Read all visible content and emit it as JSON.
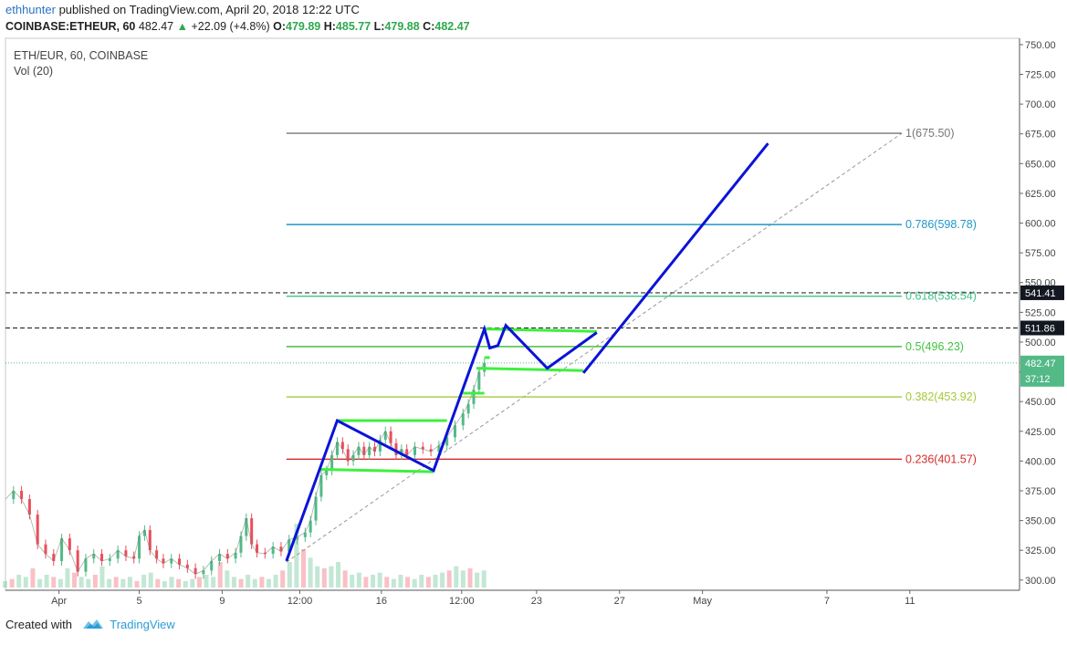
{
  "header": {
    "publisher": "ethhunter",
    "published_text": "published on TradingView.com, April 20, 2018 12:22 UTC",
    "symbol": "COINBASE:ETHEUR, 60",
    "last": "482.47",
    "change": "+22.09 (+4.8%)",
    "o_label": "O:",
    "o": "479.89",
    "h_label": "H:",
    "h": "485.77",
    "l_label": "L:",
    "l": "479.88",
    "c_label": "C:",
    "c": "482.47"
  },
  "legend": {
    "title": "ETH/EUR, 60, COINBASE",
    "indicator": "Vol (20)"
  },
  "footer": {
    "created_with": "Created with",
    "brand": "TradingView"
  },
  "colors": {
    "bull": "#53b987",
    "bear": "#eb4d5c",
    "pattern": "#0b13d8",
    "flag": "#3df03d",
    "fib_1": "#777777",
    "fib_786": "#2196c8",
    "fib_618": "#43c08a",
    "fib_5": "#43c043",
    "fib_382": "#a6c93a",
    "fib_236": "#d22d2d"
  },
  "chart_data": {
    "type": "line",
    "title": "ETH/EUR, 60, COINBASE",
    "y_axis": {
      "min": 287,
      "max": 752,
      "ticks": [
        300,
        325,
        350,
        375,
        400,
        425,
        450,
        475,
        500,
        525,
        550,
        575,
        600,
        625,
        650,
        675,
        700,
        725,
        750
      ],
      "tick_labels": [
        "300.00",
        "325.00",
        "350.00",
        "375.00",
        "400.00",
        "425.00",
        "450.00",
        "475.00",
        "500.00",
        "525.00",
        "550.00",
        "575.00",
        "600.00",
        "625.00",
        "650.00",
        "675.00",
        "700.00",
        "725.00",
        "750.00"
      ]
    },
    "x_axis": {
      "tick_labels": [
        "Apr",
        "5",
        "9",
        "12:00",
        "16",
        "12:00",
        "23",
        "27",
        "May",
        "7",
        "11"
      ],
      "tick_pos": [
        0.04,
        0.1,
        0.162,
        0.22,
        0.281,
        0.341,
        0.397,
        0.459,
        0.521,
        0.614,
        0.676
      ],
      "min": 0,
      "max": 0.758
    },
    "price_series": [
      [
        0.0,
        368
      ],
      [
        0.006,
        375
      ],
      [
        0.012,
        368
      ],
      [
        0.018,
        355
      ],
      [
        0.024,
        330
      ],
      [
        0.03,
        322
      ],
      [
        0.036,
        316
      ],
      [
        0.042,
        335
      ],
      [
        0.048,
        325
      ],
      [
        0.054,
        307
      ],
      [
        0.06,
        318
      ],
      [
        0.066,
        322
      ],
      [
        0.072,
        316
      ],
      [
        0.078,
        318
      ],
      [
        0.084,
        325
      ],
      [
        0.09,
        320
      ],
      [
        0.096,
        318
      ],
      [
        0.1,
        337
      ],
      [
        0.104,
        342
      ],
      [
        0.108,
        325
      ],
      [
        0.113,
        318
      ],
      [
        0.118,
        314
      ],
      [
        0.124,
        318
      ],
      [
        0.13,
        313
      ],
      [
        0.136,
        310
      ],
      [
        0.142,
        305
      ],
      [
        0.148,
        308
      ],
      [
        0.154,
        316
      ],
      [
        0.16,
        322
      ],
      [
        0.166,
        318
      ],
      [
        0.172,
        323
      ],
      [
        0.176,
        337
      ],
      [
        0.18,
        352
      ],
      [
        0.184,
        330
      ],
      [
        0.188,
        323
      ],
      [
        0.194,
        322
      ],
      [
        0.2,
        328
      ],
      [
        0.206,
        324
      ],
      [
        0.212,
        334
      ],
      [
        0.218,
        336
      ],
      [
        0.224,
        340
      ],
      [
        0.228,
        350
      ],
      [
        0.232,
        370
      ],
      [
        0.236,
        388
      ],
      [
        0.24,
        392
      ],
      [
        0.244,
        405
      ],
      [
        0.248,
        416
      ],
      [
        0.252,
        410
      ],
      [
        0.256,
        400
      ],
      [
        0.26,
        405
      ],
      [
        0.264,
        412
      ],
      [
        0.268,
        405
      ],
      [
        0.272,
        412
      ],
      [
        0.276,
        408
      ],
      [
        0.28,
        418
      ],
      [
        0.284,
        425
      ],
      [
        0.288,
        415
      ],
      [
        0.292,
        405
      ],
      [
        0.296,
        410
      ],
      [
        0.3,
        405
      ],
      [
        0.306,
        412
      ],
      [
        0.312,
        410
      ],
      [
        0.318,
        408
      ],
      [
        0.324,
        413
      ],
      [
        0.33,
        420
      ],
      [
        0.336,
        430
      ],
      [
        0.342,
        440
      ],
      [
        0.346,
        448
      ],
      [
        0.35,
        460
      ],
      [
        0.354,
        475
      ],
      [
        0.358,
        482.47
      ]
    ],
    "volume": [
      3,
      4,
      6,
      5,
      9,
      4,
      6,
      5,
      4,
      9,
      7,
      5,
      4,
      6,
      10,
      4,
      5,
      4,
      5,
      3,
      6,
      7,
      4,
      3,
      5,
      4,
      3,
      4,
      5,
      6,
      5,
      12,
      8,
      5,
      4,
      6,
      4,
      5,
      4,
      6,
      8,
      12,
      30,
      18,
      14,
      10,
      9,
      10,
      12,
      8,
      6,
      7,
      5,
      6,
      7,
      5,
      4,
      6,
      5,
      4,
      6,
      5,
      6,
      7,
      8,
      10,
      8,
      9,
      7,
      8
    ],
    "volume_max": 30,
    "fib_levels": [
      {
        "ratio": "1",
        "value": 675.5,
        "label": "1(675.50)"
      },
      {
        "ratio": "0.786",
        "value": 598.78,
        "label": "0.786(598.78)"
      },
      {
        "ratio": "0.618",
        "value": 538.54,
        "label": "0.618(538.54)"
      },
      {
        "ratio": "0.5",
        "value": 496.23,
        "label": "0.5(496.23)"
      },
      {
        "ratio": "0.382",
        "value": 453.92,
        "label": "0.382(453.92)"
      },
      {
        "ratio": "0.236",
        "value": 401.57,
        "label": "0.236(401.57)"
      }
    ],
    "fib_x_range": [
      0.21,
      0.67
    ],
    "horizontal_levels": [
      {
        "value": 541.41,
        "label": "541.41"
      },
      {
        "value": 511.86,
        "label": "511.86"
      }
    ],
    "current_price": {
      "value": 482.47,
      "label": "482.47",
      "countdown": "37:12"
    },
    "trend_line": [
      [
        0.21,
        315
      ],
      [
        0.67,
        675.5
      ]
    ],
    "pattern_path": [
      [
        0.21,
        316
      ],
      [
        0.248,
        434
      ],
      [
        0.32,
        392
      ],
      [
        0.358,
        511
      ],
      [
        0.362,
        495
      ],
      [
        0.368,
        497
      ],
      [
        0.374,
        514
      ],
      [
        0.405,
        478
      ],
      [
        0.442,
        508
      ]
    ],
    "projection_path": [
      [
        0.432,
        474
      ],
      [
        0.57,
        667
      ]
    ],
    "flags": [
      {
        "from": [
          0.248,
          434
        ],
        "to": [
          0.33,
          434
        ]
      },
      {
        "from": [
          0.235,
          393
        ],
        "to": [
          0.32,
          391
        ]
      },
      {
        "from": [
          0.342,
          457
        ],
        "to": [
          0.358,
          457
        ]
      },
      {
        "from": [
          0.352,
          478
        ],
        "to": [
          0.432,
          476
        ]
      },
      {
        "from": [
          0.358,
          511
        ],
        "to": [
          0.442,
          509
        ]
      },
      {
        "from": [
          0.358,
          487
        ],
        "to": [
          0.362,
          487
        ]
      }
    ]
  }
}
